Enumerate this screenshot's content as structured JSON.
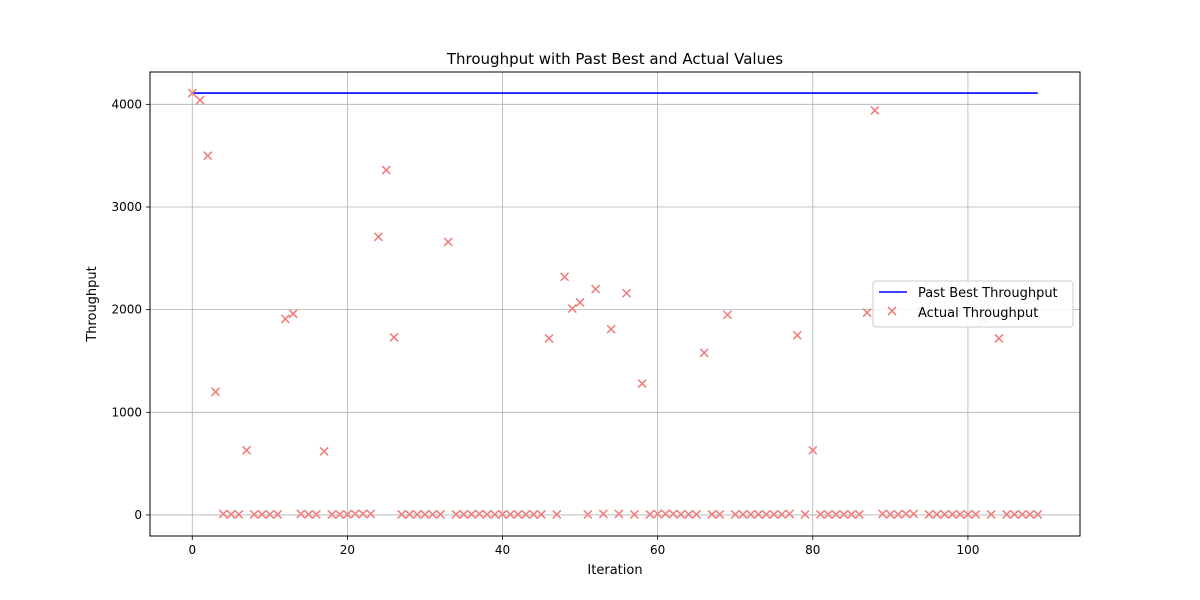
{
  "chart_data": {
    "type": "scatter",
    "title": "Throughput with Past Best and Actual Values",
    "xlabel": "Iteration",
    "ylabel": "Throughput",
    "xlim": [
      -5.45,
      114.45
    ],
    "ylim": [
      -205,
      4315
    ],
    "xticks": [
      0,
      20,
      40,
      60,
      80,
      100
    ],
    "yticks": [
      0,
      1000,
      2000,
      3000,
      4000
    ],
    "grid": true,
    "legend_position": "center-right",
    "series": [
      {
        "name": "Past Best Throughput",
        "kind": "line",
        "color": "#0000ff",
        "x": [
          0,
          109
        ],
        "values": [
          4110,
          4110
        ]
      },
      {
        "name": "Actual Throughput",
        "kind": "scatter",
        "marker": "x",
        "color": "#f08080",
        "x": [
          0,
          1,
          2,
          3,
          4,
          5,
          6,
          7,
          8,
          9,
          10,
          11,
          12,
          13,
          14,
          15,
          16,
          17,
          18,
          19,
          20,
          21,
          22,
          23,
          24,
          25,
          26,
          27,
          28,
          29,
          30,
          31,
          32,
          33,
          34,
          35,
          36,
          37,
          38,
          39,
          40,
          41,
          42,
          43,
          44,
          45,
          46,
          47,
          48,
          49,
          50,
          51,
          52,
          53,
          54,
          55,
          56,
          57,
          58,
          59,
          60,
          61,
          62,
          63,
          64,
          65,
          66,
          67,
          68,
          69,
          70,
          71,
          72,
          73,
          74,
          75,
          76,
          77,
          78,
          79,
          80,
          81,
          82,
          83,
          84,
          85,
          86,
          87,
          88,
          89,
          90,
          91,
          92,
          93,
          94,
          95,
          96,
          97,
          98,
          99,
          100,
          101,
          102,
          103,
          104,
          105,
          106,
          107,
          108,
          109
        ],
        "values": [
          4110,
          4040,
          3500,
          1200,
          10,
          5,
          5,
          630,
          5,
          5,
          5,
          5,
          1910,
          1960,
          10,
          5,
          5,
          620,
          5,
          5,
          5,
          10,
          10,
          10,
          2710,
          3360,
          1730,
          5,
          5,
          5,
          5,
          5,
          5,
          2660,
          5,
          5,
          5,
          10,
          5,
          5,
          5,
          5,
          5,
          5,
          5,
          5,
          1720,
          5,
          2320,
          2010,
          2070,
          5,
          2200,
          10,
          1810,
          10,
          2160,
          5,
          1280,
          5,
          10,
          10,
          10,
          5,
          5,
          5,
          1580,
          5,
          5,
          1950,
          5,
          5,
          5,
          5,
          5,
          5,
          5,
          10,
          1750,
          5,
          630,
          5,
          5,
          5,
          5,
          5,
          5,
          1970,
          3940,
          10,
          5,
          5,
          10,
          10,
          1990,
          5,
          5,
          5,
          5,
          5,
          5,
          5,
          1910,
          5,
          1720,
          5,
          5,
          5,
          5,
          5
        ]
      }
    ]
  }
}
